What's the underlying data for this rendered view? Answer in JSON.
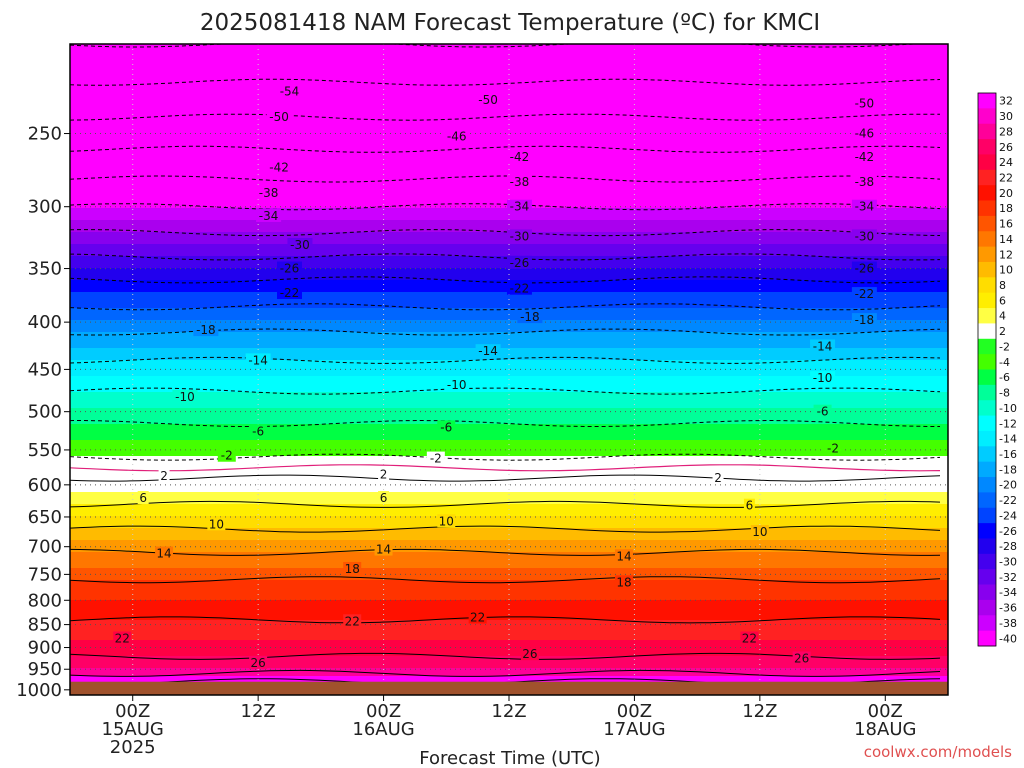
{
  "chart_data": {
    "type": "heatmap",
    "title": "2025081418 NAM Forecast Temperature (ºC) for KMCI",
    "xlabel": "Forecast Time (UTC)",
    "ylabel": "",
    "x_ticks": [
      {
        "lines": [
          "00Z",
          "15AUG",
          "2025"
        ],
        "hour": 6
      },
      {
        "lines": [
          "12Z"
        ],
        "hour": 18
      },
      {
        "lines": [
          "00Z",
          "16AUG"
        ],
        "hour": 30
      },
      {
        "lines": [
          "12Z"
        ],
        "hour": 42
      },
      {
        "lines": [
          "00Z",
          "17AUG"
        ],
        "hour": 54
      },
      {
        "lines": [
          "12Z"
        ],
        "hour": 66
      },
      {
        "lines": [
          "00Z",
          "18AUG"
        ],
        "hour": 78
      }
    ],
    "x_range_hours": [
      0,
      84
    ],
    "y_ticks": [
      "250",
      "300",
      "350",
      "400",
      "450",
      "500",
      "550",
      "600",
      "650",
      "700",
      "750",
      "800",
      "850",
      "900",
      "950",
      "1000"
    ],
    "y_ticks_values": [
      250,
      300,
      350,
      400,
      450,
      500,
      550,
      600,
      650,
      700,
      750,
      800,
      850,
      900,
      950,
      1000
    ],
    "y_range": [
      200,
      1013
    ],
    "y_scale": "log-pressure",
    "surface_pressure": 980,
    "grid": true,
    "colorbar": {
      "labels": [
        "32",
        "30",
        "28",
        "26",
        "24",
        "22",
        "20",
        "18",
        "16",
        "14",
        "12",
        "10",
        "8",
        "6",
        "4",
        "2",
        "-2",
        "-4",
        "-6",
        "-8",
        "-10",
        "-12",
        "-14",
        "-16",
        "-18",
        "-20",
        "-22",
        "-24",
        "-26",
        "-28",
        "-30",
        "-32",
        "-34",
        "-36",
        "-38",
        "-40"
      ],
      "colors": [
        "#ff00ff",
        "#ff00cc",
        "#ff0099",
        "#ff0066",
        "#ff0044",
        "#ff2222",
        "#ff1100",
        "#ff3300",
        "#ff5500",
        "#ff7700",
        "#ff9900",
        "#ffbb00",
        "#ffdd00",
        "#ffee00",
        "#ffff44",
        "#ffffff",
        "#22ff22",
        "#44ff00",
        "#00ff44",
        "#00ff99",
        "#00ffcc",
        "#00ffff",
        "#00eeff",
        "#00ccff",
        "#00aaff",
        "#0088ff",
        "#0066ff",
        "#0044ff",
        "#0000ff",
        "#2200ee",
        "#4400ee",
        "#6600ee",
        "#8800ee",
        "#aa00ee",
        "#cc00ff",
        "#ff00ff"
      ]
    },
    "temperature_profile": [
      {
        "p": 200,
        "t": -58
      },
      {
        "p": 220,
        "t": -54
      },
      {
        "p": 240,
        "t": -50
      },
      {
        "p": 260,
        "t": -46
      },
      {
        "p": 280,
        "t": -42
      },
      {
        "p": 300,
        "t": -38
      },
      {
        "p": 320,
        "t": -34
      },
      {
        "p": 340,
        "t": -30
      },
      {
        "p": 360,
        "t": -26
      },
      {
        "p": 385,
        "t": -22
      },
      {
        "p": 410,
        "t": -18
      },
      {
        "p": 440,
        "t": -14
      },
      {
        "p": 475,
        "t": -10
      },
      {
        "p": 515,
        "t": -6
      },
      {
        "p": 560,
        "t": -2
      },
      {
        "p": 590,
        "t": 2
      },
      {
        "p": 630,
        "t": 6
      },
      {
        "p": 670,
        "t": 10
      },
      {
        "p": 710,
        "t": 14
      },
      {
        "p": 760,
        "t": 18
      },
      {
        "p": 840,
        "t": 22
      },
      {
        "p": 920,
        "t": 26
      },
      {
        "p": 960,
        "t": 29
      },
      {
        "p": 980,
        "t": 32
      }
    ],
    "contour_labels": [
      {
        "text": "-54",
        "hour": 21,
        "p": 225
      },
      {
        "text": "-50",
        "hour": 20,
        "p": 240
      },
      {
        "text": "-50",
        "hour": 40,
        "p": 230
      },
      {
        "text": "-50",
        "hour": 76,
        "p": 232
      },
      {
        "text": "-46",
        "hour": 37,
        "p": 252
      },
      {
        "text": "-46",
        "hour": 76,
        "p": 250
      },
      {
        "text": "-42",
        "hour": 20,
        "p": 272
      },
      {
        "text": "-42",
        "hour": 43,
        "p": 265
      },
      {
        "text": "-42",
        "hour": 76,
        "p": 265
      },
      {
        "text": "-38",
        "hour": 19,
        "p": 290
      },
      {
        "text": "-38",
        "hour": 43,
        "p": 282
      },
      {
        "text": "-38",
        "hour": 76,
        "p": 282
      },
      {
        "text": "-34",
        "hour": 19,
        "p": 307
      },
      {
        "text": "-34",
        "hour": 43,
        "p": 300
      },
      {
        "text": "-34",
        "hour": 76,
        "p": 300
      },
      {
        "text": "-30",
        "hour": 22,
        "p": 330
      },
      {
        "text": "-30",
        "hour": 43,
        "p": 323
      },
      {
        "text": "-30",
        "hour": 76,
        "p": 323
      },
      {
        "text": "-26",
        "hour": 21,
        "p": 350
      },
      {
        "text": "-26",
        "hour": 43,
        "p": 345
      },
      {
        "text": "-26",
        "hour": 76,
        "p": 350
      },
      {
        "text": "-22",
        "hour": 21,
        "p": 372
      },
      {
        "text": "-22",
        "hour": 43,
        "p": 368
      },
      {
        "text": "-22",
        "hour": 76,
        "p": 373
      },
      {
        "text": "-18",
        "hour": 13,
        "p": 408
      },
      {
        "text": "-18",
        "hour": 44,
        "p": 395
      },
      {
        "text": "-18",
        "hour": 76,
        "p": 398
      },
      {
        "text": "-14",
        "hour": 18,
        "p": 440
      },
      {
        "text": "-14",
        "hour": 40,
        "p": 430
      },
      {
        "text": "-14",
        "hour": 72,
        "p": 425
      },
      {
        "text": "-10",
        "hour": 11,
        "p": 482
      },
      {
        "text": "-10",
        "hour": 37,
        "p": 468
      },
      {
        "text": "-10",
        "hour": 72,
        "p": 460
      },
      {
        "text": "-6",
        "hour": 18,
        "p": 525
      },
      {
        "text": "-6",
        "hour": 36,
        "p": 520
      },
      {
        "text": "-6",
        "hour": 72,
        "p": 500
      },
      {
        "text": "-2",
        "hour": 15,
        "p": 558
      },
      {
        "text": "-2",
        "hour": 35,
        "p": 562
      },
      {
        "text": "-2",
        "hour": 73,
        "p": 548
      },
      {
        "text": "2",
        "hour": 9,
        "p": 587
      },
      {
        "text": "2",
        "hour": 30,
        "p": 585
      },
      {
        "text": "2",
        "hour": 62,
        "p": 590
      },
      {
        "text": "6",
        "hour": 7,
        "p": 620
      },
      {
        "text": "6",
        "hour": 30,
        "p": 620
      },
      {
        "text": "6",
        "hour": 65,
        "p": 632
      },
      {
        "text": "10",
        "hour": 14,
        "p": 662
      },
      {
        "text": "10",
        "hour": 36,
        "p": 657
      },
      {
        "text": "10",
        "hour": 66,
        "p": 675
      },
      {
        "text": "14",
        "hour": 9,
        "p": 712
      },
      {
        "text": "14",
        "hour": 30,
        "p": 705
      },
      {
        "text": "14",
        "hour": 53,
        "p": 717
      },
      {
        "text": "18",
        "hour": 27,
        "p": 740
      },
      {
        "text": "18",
        "hour": 53,
        "p": 765
      },
      {
        "text": "22",
        "hour": 5,
        "p": 880
      },
      {
        "text": "22",
        "hour": 27,
        "p": 843
      },
      {
        "text": "22",
        "hour": 39,
        "p": 835
      },
      {
        "text": "22",
        "hour": 65,
        "p": 880
      },
      {
        "text": "26",
        "hour": 18,
        "p": 935
      },
      {
        "text": "26",
        "hour": 44,
        "p": 915
      },
      {
        "text": "26",
        "hour": 70,
        "p": 925
      }
    ]
  },
  "credit": "coolwx.com/models"
}
